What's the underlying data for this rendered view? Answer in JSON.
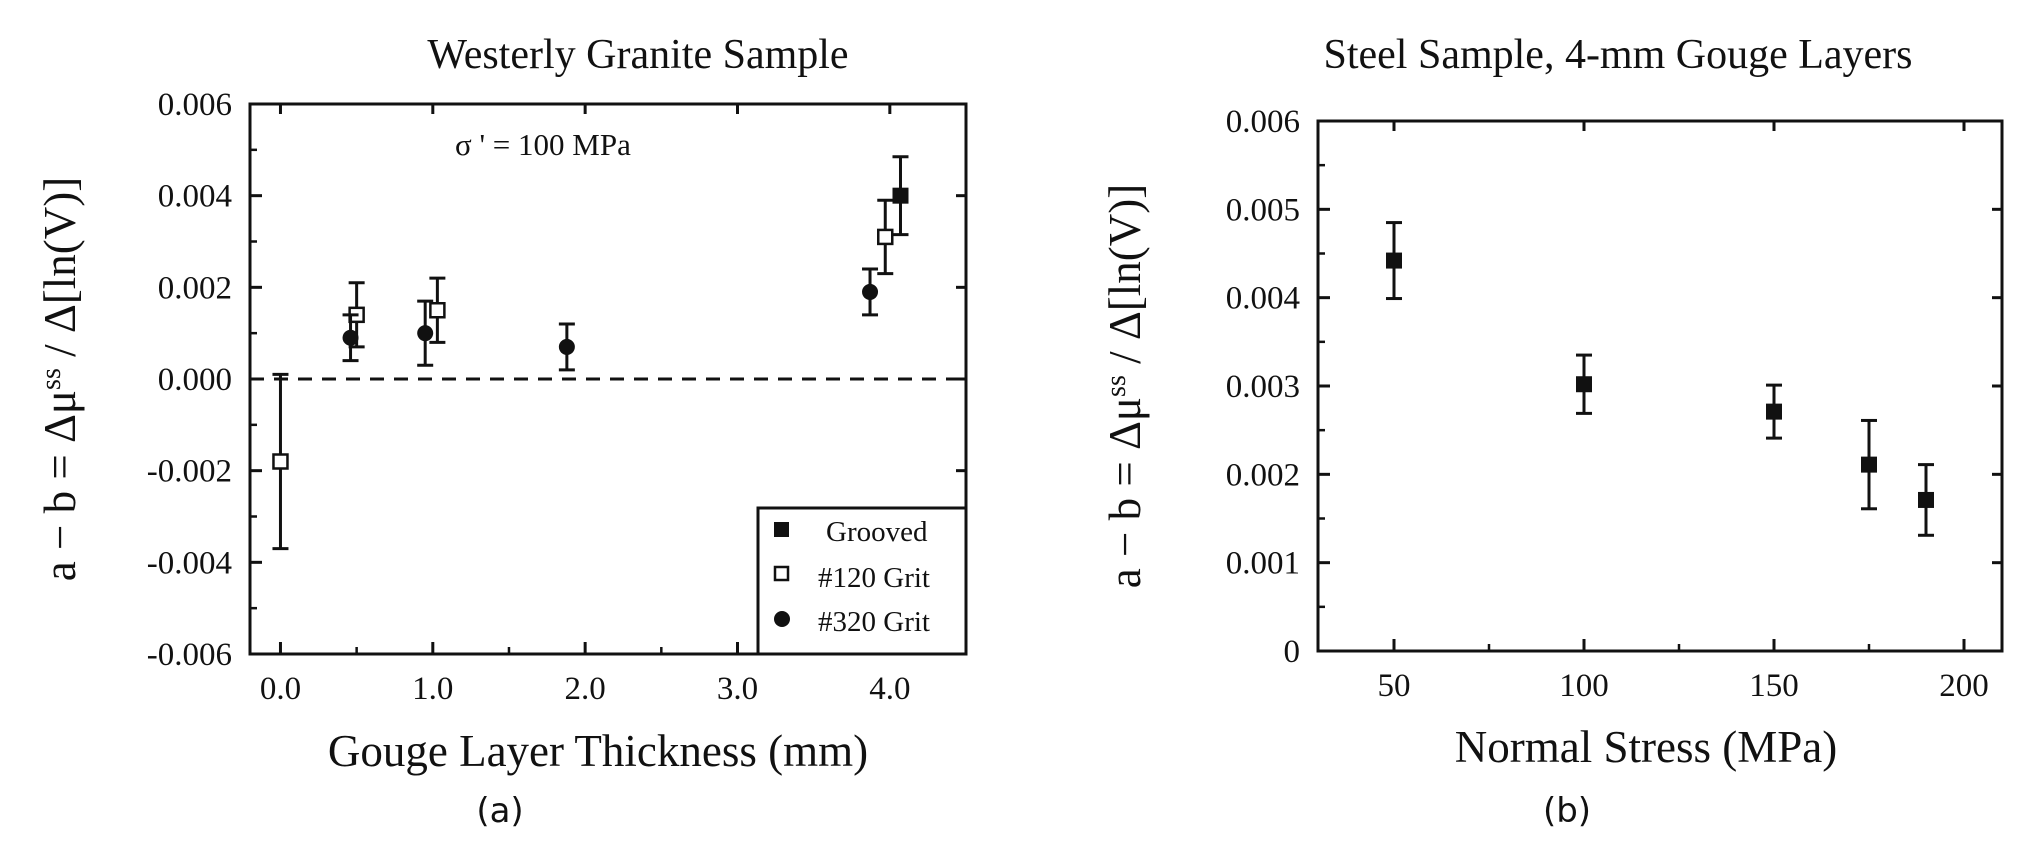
{
  "chart_data": [
    {
      "id": "a",
      "type": "scatter",
      "title": "Westerly Granite Sample",
      "subtitle": "(a)",
      "annotation": "σ '  = 100 MPa",
      "xlabel": "Gouge Layer Thickness  (mm)",
      "ylabel": "a − b  =  Δμ^ss / Δ[ln(V)]",
      "xlim": [
        -0.2,
        4.5
      ],
      "ylim": [
        -0.006,
        0.006
      ],
      "xticks": [
        "0.0",
        "1.0",
        "2.0",
        "3.0",
        "4.0"
      ],
      "xtick_values": [
        0,
        1,
        2,
        3,
        4
      ],
      "yticks": [
        "-0.006",
        "-0.004",
        "-0.002",
        "0.000",
        "0.002",
        "0.004",
        "0.006"
      ],
      "ytick_values": [
        -0.006,
        -0.004,
        -0.002,
        0,
        0.002,
        0.004,
        0.006
      ],
      "reference_line": {
        "y": 0,
        "style": "dashed"
      },
      "legend": {
        "placement": "bottom-right",
        "entries": [
          "Grooved",
          "#120 Grit",
          "#320 Grit"
        ]
      },
      "series": [
        {
          "name": "Grooved",
          "marker": "filled-square",
          "points": [
            {
              "x": 4.07,
              "y": 0.004,
              "err": 0.00085
            }
          ]
        },
        {
          "name": "#120 Grit",
          "marker": "open-square",
          "points": [
            {
              "x": 0.0,
              "y": -0.0018,
              "err": 0.0019
            },
            {
              "x": 0.5,
              "y": 0.0014,
              "err": 0.0007
            },
            {
              "x": 1.03,
              "y": 0.0015,
              "err": 0.0007
            },
            {
              "x": 3.97,
              "y": 0.0031,
              "err": 0.0008
            }
          ]
        },
        {
          "name": "#320 Grit",
          "marker": "filled-circle",
          "points": [
            {
              "x": 0.46,
              "y": 0.0009,
              "err": 0.0005
            },
            {
              "x": 0.95,
              "y": 0.001,
              "err": 0.0007
            },
            {
              "x": 1.88,
              "y": 0.0007,
              "err": 0.0005
            },
            {
              "x": 3.87,
              "y": 0.0019,
              "err": 0.0005
            }
          ]
        }
      ]
    },
    {
      "id": "b",
      "type": "scatter",
      "title": "Steel Sample,  4-mm  Gouge Layers",
      "subtitle": "(b)",
      "xlabel": "Normal Stress (MPa)",
      "ylabel": "a − b  =  Δμ^ss / Δ[ln(V)]",
      "xlim": [
        30,
        210
      ],
      "ylim": [
        0,
        0.006
      ],
      "xticks": [
        "50",
        "100",
        "150",
        "200"
      ],
      "xtick_values": [
        50,
        100,
        150,
        200
      ],
      "yticks": [
        "0",
        "0.001",
        "0.002",
        "0.003",
        "0.004",
        "0.005",
        "0.006"
      ],
      "ytick_values": [
        0,
        0.001,
        0.002,
        0.003,
        0.004,
        0.005,
        0.006
      ],
      "series": [
        {
          "name": "Steel",
          "marker": "filled-square",
          "points": [
            {
              "x": 50,
              "y": 0.00442,
              "err": 0.00043
            },
            {
              "x": 100,
              "y": 0.00302,
              "err": 0.00033
            },
            {
              "x": 150,
              "y": 0.00271,
              "err": 0.0003
            },
            {
              "x": 175,
              "y": 0.00211,
              "err": 0.0005
            },
            {
              "x": 190,
              "y": 0.00171,
              "err": 0.0004
            }
          ]
        }
      ]
    }
  ]
}
